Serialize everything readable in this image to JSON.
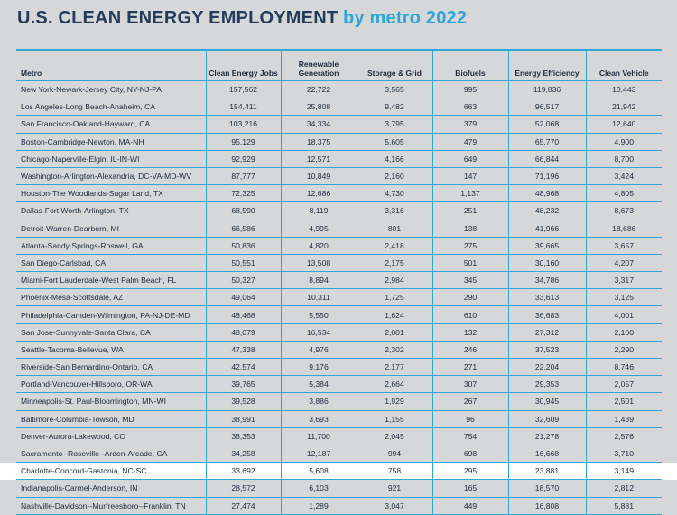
{
  "title": {
    "main": "U.S. CLEAN ENERGY EMPLOYMENT",
    "sub": "by metro 2022"
  },
  "table": {
    "headers": [
      "Metro",
      "Clean Energy Jobs",
      "Renewable Generation",
      "Storage & Grid",
      "Biofuels",
      "Energy Efficiency",
      "Clean Vehicle"
    ],
    "rows": [
      [
        "New York-Newark-Jersey City, NY-NJ-PA",
        "157,562",
        "22,722",
        "3,565",
        "995",
        "119,836",
        "10,443"
      ],
      [
        "Los Angeles-Long Beach-Anaheim, CA",
        "154,411",
        "25,808",
        "9,482",
        "663",
        "96,517",
        "21,942"
      ],
      [
        "San Francisco-Oakland-Hayward, CA",
        "103,216",
        "34,334",
        "3,795",
        "379",
        "52,068",
        "12,640"
      ],
      [
        "Boston-Cambridge-Newton, MA-NH",
        "95,129",
        "18,375",
        "5,605",
        "479",
        "65,770",
        "4,900"
      ],
      [
        "Chicago-Naperville-Elgin, IL-IN-WI",
        "92,929",
        "12,571",
        "4,166",
        "649",
        "66,844",
        "8,700"
      ],
      [
        "Washington-Arlington-Alexandria, DC-VA-MD-WV",
        "87,777",
        "10,849",
        "2,160",
        "147",
        "71,196",
        "3,424"
      ],
      [
        "Houston-The Woodlands-Sugar Land, TX",
        "72,325",
        "12,686",
        "4,730",
        "1,137",
        "48,968",
        "4,805"
      ],
      [
        "Dallas-Fort Worth-Arlington, TX",
        "68,590",
        "8,119",
        "3,316",
        "251",
        "48,232",
        "8,673"
      ],
      [
        "Detroit-Warren-Dearborn, MI",
        "66,586",
        "4,995",
        "801",
        "138",
        "41,966",
        "18,686"
      ],
      [
        "Atlanta-Sandy Springs-Roswell, GA",
        "50,836",
        "4,820",
        "2,418",
        "275",
        "39,665",
        "3,657"
      ],
      [
        "San Diego-Carlsbad, CA",
        "50,551",
        "13,508",
        "2,175",
        "501",
        "30,160",
        "4,207"
      ],
      [
        "Miami-Fort Lauderdale-West Palm Beach, FL",
        "50,327",
        "8,894",
        "2,984",
        "345",
        "34,786",
        "3,317"
      ],
      [
        "Phoenix-Mesa-Scottsdale, AZ",
        "49,064",
        "10,311",
        "1,725",
        "290",
        "33,613",
        "3,125"
      ],
      [
        "Philadelphia-Camden-Wilmington, PA-NJ-DE-MD",
        "48,468",
        "5,550",
        "1,624",
        "610",
        "36,683",
        "4,001"
      ],
      [
        "San Jose-Sunnyvale-Santa Clara, CA",
        "48,079",
        "16,534",
        "2,001",
        "132",
        "27,312",
        "2,100"
      ],
      [
        "Seattle-Tacoma-Bellevue, WA",
        "47,338",
        "4,976",
        "2,302",
        "246",
        "37,523",
        "2,290"
      ],
      [
        "Riverside-San Bernardino-Ontario, CA",
        "42,574",
        "9,176",
        "2,177",
        "271",
        "22,204",
        "8,746"
      ],
      [
        "Portland-Vancouver-Hillsboro, OR-WA",
        "39,765",
        "5,384",
        "2,664",
        "307",
        "29,353",
        "2,057"
      ],
      [
        "Minneapolis-St. Paul-Bloomington, MN-WI",
        "39,528",
        "3,886",
        "1,929",
        "267",
        "30,945",
        "2,501"
      ],
      [
        "Baltimore-Columbia-Towson, MD",
        "38,991",
        "3,693",
        "1,155",
        "96",
        "32,609",
        "1,439"
      ],
      [
        "Denver-Aurora-Lakewood, CO",
        "38,353",
        "11,700",
        "2,045",
        "754",
        "21,278",
        "2,576"
      ],
      [
        "Sacramento--Roseville--Arden-Arcade, CA",
        "34,258",
        "12,187",
        "994",
        "698",
        "16,668",
        "3,710"
      ],
      [
        "Charlotte-Concord-Gastonia, NC-SC",
        "33,692",
        "5,608",
        "758",
        "295",
        "23,881",
        "3,149"
      ],
      [
        "Indianapolis-Carmel-Anderson, IN",
        "28,572",
        "6,103",
        "921",
        "165",
        "18,570",
        "2,812"
      ],
      [
        "Nashville-Davidson--Murfreesboro--Franklin, TN",
        "27,474",
        "1,289",
        "3,047",
        "449",
        "16,808",
        "5,881"
      ]
    ],
    "highlight_row": 22
  },
  "colors": {
    "background": "#d6d7d9",
    "title_main": "#243c5a",
    "title_accent": "#2ea7d6",
    "rule": "#2ea7d6",
    "highlight": "#ffffff"
  }
}
